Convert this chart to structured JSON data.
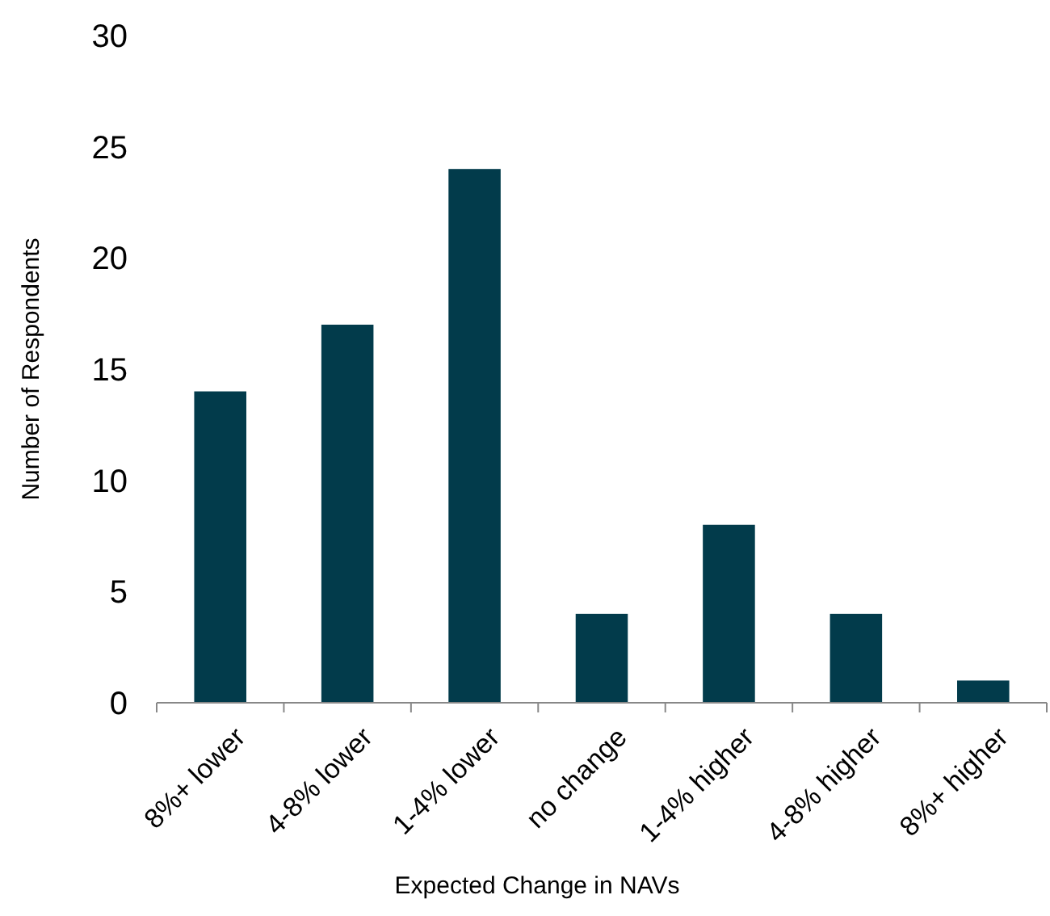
{
  "chart_data": {
    "type": "bar",
    "xlabel": "Expected Change in NAVs",
    "ylabel": "Number of Respondents",
    "categories": [
      "8%+ lower",
      "4-8% lower",
      "1-4% lower",
      "no change",
      "1-4% higher",
      "4-8% higher",
      "8%+ higher"
    ],
    "values": [
      14,
      17,
      24,
      4,
      8,
      4,
      1
    ],
    "color": "#023b4b",
    "ylim": [
      0,
      30
    ],
    "yticks": [
      0,
      5,
      10,
      15,
      20,
      25,
      30
    ],
    "grid": false
  }
}
